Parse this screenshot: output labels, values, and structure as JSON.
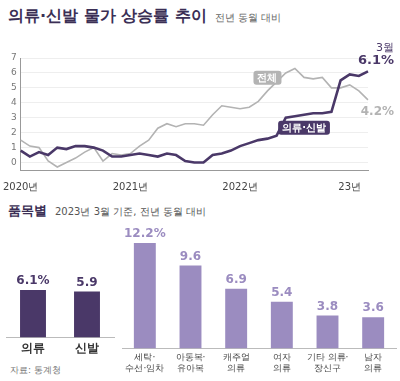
{
  "source": "자료: 통계청",
  "chart_data": [
    {
      "type": "line",
      "title": "의류·신발 물가 상승률 추이",
      "subtitle": "전년 동월 대비",
      "categories": [
        "2020년",
        null,
        null,
        null,
        null,
        null,
        null,
        null,
        null,
        null,
        null,
        null,
        "2021년",
        null,
        null,
        null,
        null,
        null,
        null,
        null,
        null,
        null,
        null,
        null,
        "2022년",
        null,
        null,
        null,
        null,
        null,
        null,
        null,
        null,
        null,
        null,
        null,
        "23년",
        null,
        null
      ],
      "series": [
        {
          "name": "전체",
          "color": "#b3b3b3",
          "values": [
            1.5,
            1.1,
            1.0,
            0.1,
            -0.3,
            0.0,
            0.3,
            0.7,
            1.0,
            0.1,
            0.6,
            0.5,
            0.6,
            1.1,
            1.5,
            2.3,
            2.6,
            2.4,
            2.6,
            2.6,
            2.5,
            3.2,
            3.8,
            3.7,
            3.6,
            3.7,
            4.1,
            4.8,
            5.4,
            6.0,
            6.3,
            5.7,
            5.6,
            5.7,
            5.0,
            5.0,
            5.2,
            4.8,
            4.2
          ],
          "value_labels": [
            null,
            null,
            null,
            null,
            null,
            null,
            null,
            null,
            null,
            null,
            null,
            null,
            null,
            null,
            null,
            null,
            null,
            null,
            null,
            null,
            null,
            null,
            null,
            null,
            null,
            null,
            null,
            null,
            null,
            null,
            null,
            null,
            null,
            null,
            null,
            null,
            null,
            null,
            "4.2%"
          ]
        },
        {
          "name": "의류·신발",
          "color": "#4a3868",
          "values": [
            0.8,
            0.4,
            0.7,
            0.5,
            1.0,
            0.9,
            1.1,
            1.1,
            1.0,
            0.8,
            0.4,
            0.4,
            0.5,
            0.6,
            0.5,
            0.4,
            0.6,
            0.5,
            0.1,
            0.0,
            0.0,
            0.5,
            0.6,
            0.8,
            1.1,
            1.3,
            1.5,
            1.6,
            1.8,
            3.0,
            3.1,
            3.2,
            3.3,
            3.3,
            3.4,
            5.5,
            5.9,
            5.8,
            6.1
          ],
          "value_labels": [
            null,
            null,
            null,
            null,
            null,
            null,
            null,
            null,
            null,
            null,
            null,
            null,
            null,
            null,
            null,
            null,
            null,
            null,
            null,
            null,
            null,
            null,
            null,
            null,
            null,
            null,
            null,
            null,
            null,
            null,
            null,
            null,
            null,
            null,
            null,
            null,
            null,
            null,
            "6.1%"
          ]
        }
      ],
      "annotations": [
        {
          "text": "3월"
        }
      ],
      "ylim": [
        -0.5,
        7
      ],
      "yticks": [
        0,
        1,
        2,
        3,
        4,
        5,
        6,
        7
      ],
      "grid": true,
      "data_labels": true
    },
    {
      "type": "bar",
      "title": "품목별",
      "subtitle": "2023년 3월 기준, 전년 동월 대비",
      "categories": [
        "의류",
        "신발"
      ],
      "values": [
        6.1,
        5.9
      ],
      "value_labels": [
        "6.1%",
        "5.9"
      ],
      "color": "#4a3868",
      "ylim": [
        0,
        13
      ],
      "grid": false,
      "tick_labels": "x",
      "data_labels": true
    },
    {
      "type": "bar",
      "categories": [
        [
          "세탁·",
          "수선·임차"
        ],
        [
          "아동복·",
          "유아복"
        ],
        [
          "캐주얼",
          "의류"
        ],
        [
          "여자",
          "의류"
        ],
        [
          "기타 의류·",
          "장신구"
        ],
        [
          "남자",
          "의류"
        ]
      ],
      "values": [
        12.2,
        9.6,
        6.9,
        5.4,
        3.8,
        3.6
      ],
      "value_labels": [
        "12.2%",
        "9.6",
        "6.9",
        "5.4",
        "3.8",
        "3.6"
      ],
      "color": "#9b8cc0",
      "ylim": [
        0,
        13
      ],
      "grid": false,
      "tick_labels": "x",
      "data_labels": true
    }
  ]
}
